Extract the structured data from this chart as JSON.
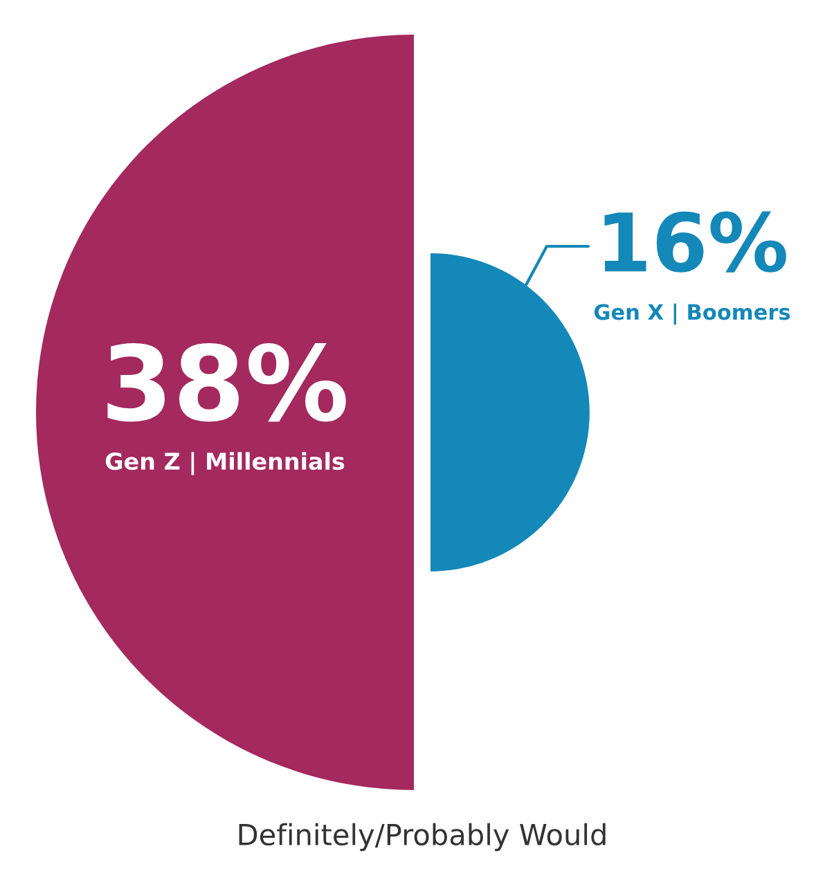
{
  "chart_data": {
    "type": "other",
    "xlabel": "Definitely/Probably Would",
    "categories": [
      "Gen Z | Millennials",
      "Gen X | Boomers"
    ],
    "values": [
      38,
      16
    ],
    "value_labels": [
      "38%",
      "16%"
    ],
    "colors": [
      "#a3295e",
      "#1488b8"
    ]
  }
}
